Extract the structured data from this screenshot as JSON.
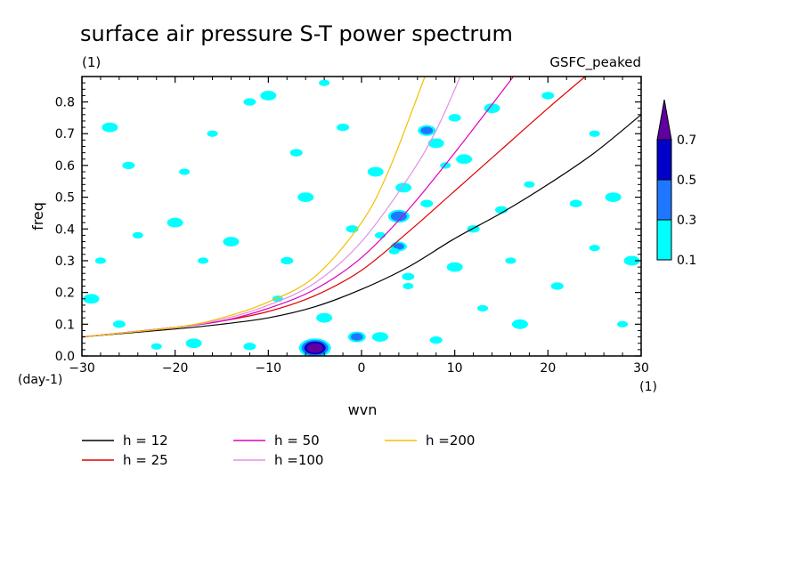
{
  "chart_data": {
    "type": "contour",
    "title": "surface air pressure S-T power spectrum",
    "subtitle_left": "(1)",
    "subtitle_right": "GSFC_peaked",
    "xlabel": "wvn",
    "ylabel": "freq",
    "x_unit": "(1)",
    "y_unit": "(day-1)",
    "xlim": [
      -30,
      30
    ],
    "ylim": [
      0,
      0.88
    ],
    "xticks": [
      -30,
      -20,
      -10,
      0,
      10,
      20,
      30
    ],
    "xtick_labels": [
      "−30",
      "−20",
      "−10",
      "0",
      "10",
      "20",
      "30"
    ],
    "yticks": [
      0,
      0.1,
      0.2,
      0.3,
      0.4,
      0.5,
      0.6,
      0.7,
      0.8
    ],
    "ytick_labels": [
      "0.0",
      "0.1",
      "0.2",
      "0.3",
      "0.4",
      "0.5",
      "0.6",
      "0.7",
      "0.8"
    ],
    "colorbar": {
      "levels": [
        0.1,
        0.3,
        0.5,
        0.7
      ],
      "labels": [
        "0.1",
        "0.3",
        "0.5",
        "0.7"
      ],
      "colors": [
        "#00ffff",
        "#1e78ff",
        "#0000c8",
        "#6000a0"
      ]
    },
    "series": [
      {
        "name": "h = 12",
        "h": 12,
        "color": "#000000",
        "x": [
          -30,
          -20,
          -15,
          -10,
          -5,
          0,
          5,
          10,
          15,
          20,
          25,
          30
        ],
        "y": [
          0.06,
          0.085,
          0.1,
          0.12,
          0.155,
          0.21,
          0.28,
          0.37,
          0.45,
          0.54,
          0.64,
          0.76
        ]
      },
      {
        "name": "h = 25",
        "h": 25,
        "color": "#e00000",
        "x": [
          -30,
          -20,
          -15,
          -10,
          -5,
          0,
          5,
          10,
          15,
          20,
          24
        ],
        "y": [
          0.06,
          0.09,
          0.11,
          0.14,
          0.19,
          0.27,
          0.39,
          0.52,
          0.65,
          0.78,
          0.88
        ]
      },
      {
        "name": "h = 50",
        "h": 50,
        "color": "#e000c0",
        "x": [
          -30,
          -20,
          -15,
          -10,
          -5,
          0,
          5,
          10,
          16.3
        ],
        "y": [
          0.06,
          0.09,
          0.11,
          0.15,
          0.21,
          0.31,
          0.46,
          0.64,
          0.88
        ]
      },
      {
        "name": "h =100",
        "h": 100,
        "color": "#e090e8",
        "x": [
          -30,
          -20,
          -15,
          -10,
          -5,
          0,
          5,
          8,
          10.6
        ],
        "y": [
          0.06,
          0.09,
          0.115,
          0.16,
          0.23,
          0.36,
          0.56,
          0.71,
          0.88
        ]
      },
      {
        "name": "h =200",
        "h": 200,
        "color": "#f0c000",
        "x": [
          -30,
          -20,
          -15,
          -10,
          -5,
          0,
          3,
          6.8
        ],
        "y": [
          0.06,
          0.09,
          0.12,
          0.17,
          0.25,
          0.42,
          0.59,
          0.88
        ]
      }
    ],
    "filled_regions": [
      {
        "x": -5,
        "y": 0.025,
        "level": 0.7
      },
      {
        "x": -0.5,
        "y": 0.06,
        "level": 0.3
      },
      {
        "x": 4,
        "y": 0.345,
        "level": 0.3
      },
      {
        "x": 4,
        "y": 0.44,
        "level": 0.3
      },
      {
        "x": 7,
        "y": 0.71,
        "level": 0.3
      },
      {
        "x": 3.5,
        "y": 0.33,
        "level": 0.1
      },
      {
        "x": 4.5,
        "y": 0.53,
        "level": 0.1
      },
      {
        "x": 5,
        "y": 0.25,
        "level": 0.1
      },
      {
        "x": 5,
        "y": 0.22,
        "level": 0.1
      },
      {
        "x": 8,
        "y": 0.67,
        "level": 0.1
      },
      {
        "x": 10,
        "y": 0.75,
        "level": 0.1
      },
      {
        "x": 9,
        "y": 0.6,
        "level": 0.1
      },
      {
        "x": 11,
        "y": 0.62,
        "level": 0.1
      },
      {
        "x": 7,
        "y": 0.48,
        "level": 0.1
      },
      {
        "x": 2,
        "y": 0.38,
        "level": 0.1
      },
      {
        "x": 1.5,
        "y": 0.58,
        "level": 0.1
      },
      {
        "x": -1,
        "y": 0.4,
        "level": 0.1
      },
      {
        "x": -4,
        "y": 0.86,
        "level": 0.1
      },
      {
        "x": -10,
        "y": 0.82,
        "level": 0.1
      },
      {
        "x": -12,
        "y": 0.8,
        "level": 0.1
      },
      {
        "x": -16,
        "y": 0.7,
        "level": 0.1
      },
      {
        "x": -20,
        "y": 0.42,
        "level": 0.1
      },
      {
        "x": -25,
        "y": 0.6,
        "level": 0.1
      },
      {
        "x": -28,
        "y": 0.3,
        "level": 0.1
      },
      {
        "x": -29,
        "y": 0.18,
        "level": 0.1
      },
      {
        "x": -26,
        "y": 0.1,
        "level": 0.1
      },
      {
        "x": -22,
        "y": 0.03,
        "level": 0.1
      },
      {
        "x": -18,
        "y": 0.04,
        "level": 0.1
      },
      {
        "x": -12,
        "y": 0.03,
        "level": 0.1
      },
      {
        "x": -24,
        "y": 0.38,
        "level": 0.1
      },
      {
        "x": -14,
        "y": 0.36,
        "level": 0.1
      },
      {
        "x": -8,
        "y": 0.3,
        "level": 0.1
      },
      {
        "x": -17,
        "y": 0.3,
        "level": 0.1
      },
      {
        "x": 2,
        "y": 0.06,
        "level": 0.1
      },
      {
        "x": 8,
        "y": 0.05,
        "level": 0.1
      },
      {
        "x": 13,
        "y": 0.15,
        "level": 0.1
      },
      {
        "x": 17,
        "y": 0.1,
        "level": 0.1
      },
      {
        "x": 21,
        "y": 0.22,
        "level": 0.1
      },
      {
        "x": 25,
        "y": 0.34,
        "level": 0.1
      },
      {
        "x": 27,
        "y": 0.5,
        "level": 0.1
      },
      {
        "x": 23,
        "y": 0.48,
        "level": 0.1
      },
      {
        "x": 18,
        "y": 0.54,
        "level": 0.1
      },
      {
        "x": 14,
        "y": 0.78,
        "level": 0.1
      },
      {
        "x": 20,
        "y": 0.82,
        "level": 0.1
      },
      {
        "x": 28,
        "y": 0.1,
        "level": 0.1
      },
      {
        "x": 29,
        "y": 0.3,
        "level": 0.1
      },
      {
        "x": 12,
        "y": 0.4,
        "level": 0.1
      },
      {
        "x": 16,
        "y": 0.3,
        "level": 0.1
      },
      {
        "x": -6,
        "y": 0.5,
        "level": 0.1
      },
      {
        "x": -7,
        "y": 0.64,
        "level": 0.1
      },
      {
        "x": -19,
        "y": 0.58,
        "level": 0.1
      },
      {
        "x": -27,
        "y": 0.72,
        "level": 0.1
      },
      {
        "x": -2,
        "y": 0.72,
        "level": 0.1
      },
      {
        "x": -9,
        "y": 0.18,
        "level": 0.1
      },
      {
        "x": 10,
        "y": 0.28,
        "level": 0.1
      },
      {
        "x": 15,
        "y": 0.46,
        "level": 0.1
      },
      {
        "x": 25,
        "y": 0.7,
        "level": 0.1
      },
      {
        "x": -4,
        "y": 0.12,
        "level": 0.1
      }
    ],
    "grid": false,
    "legend_position": "bottom-left"
  }
}
